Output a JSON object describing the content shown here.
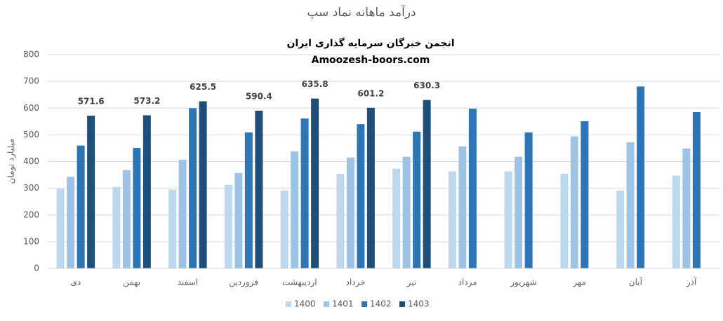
{
  "chart_data": {
    "type": "bar",
    "title": "درآمد ماهانه نماد سپ",
    "subtitles": [
      "انجمن خبرگان سرمایه گذاری ایران",
      "Amoozesh-boors.com"
    ],
    "y_label": "میلیارد تومان",
    "categories": [
      "دی",
      "بهمن",
      "اسفند",
      "فروردین",
      "اردیبهشت",
      "خرداد",
      "تیر",
      "مرداد",
      "شهریور",
      "مهر",
      "آبان",
      "آذر"
    ],
    "series": [
      {
        "name": "1400",
        "color": "#bdd7ee",
        "values": [
          298,
          305,
          295,
          313,
          292,
          354,
          373,
          363,
          363,
          355,
          292,
          347
        ]
      },
      {
        "name": "1401",
        "color": "#9dc3e6",
        "values": [
          343,
          368,
          407,
          357,
          438,
          415,
          418,
          457,
          418,
          494,
          472,
          449
        ]
      },
      {
        "name": "1402",
        "color": "#2e75b6",
        "values": [
          460,
          451,
          600,
          509,
          561,
          540,
          512,
          598,
          509,
          551,
          681,
          585
        ]
      },
      {
        "name": "1403",
        "color": "#1f4e79",
        "values": [
          571.6,
          573.2,
          625.5,
          590.4,
          635.8,
          601.2,
          630.3,
          null,
          null,
          null,
          null,
          null
        ],
        "data_labels": true
      }
    ],
    "ylim": [
      0,
      800
    ],
    "yticks": [
      0,
      100,
      200,
      300,
      400,
      500,
      600,
      700,
      800
    ],
    "grid": true,
    "legend": "bottom"
  }
}
